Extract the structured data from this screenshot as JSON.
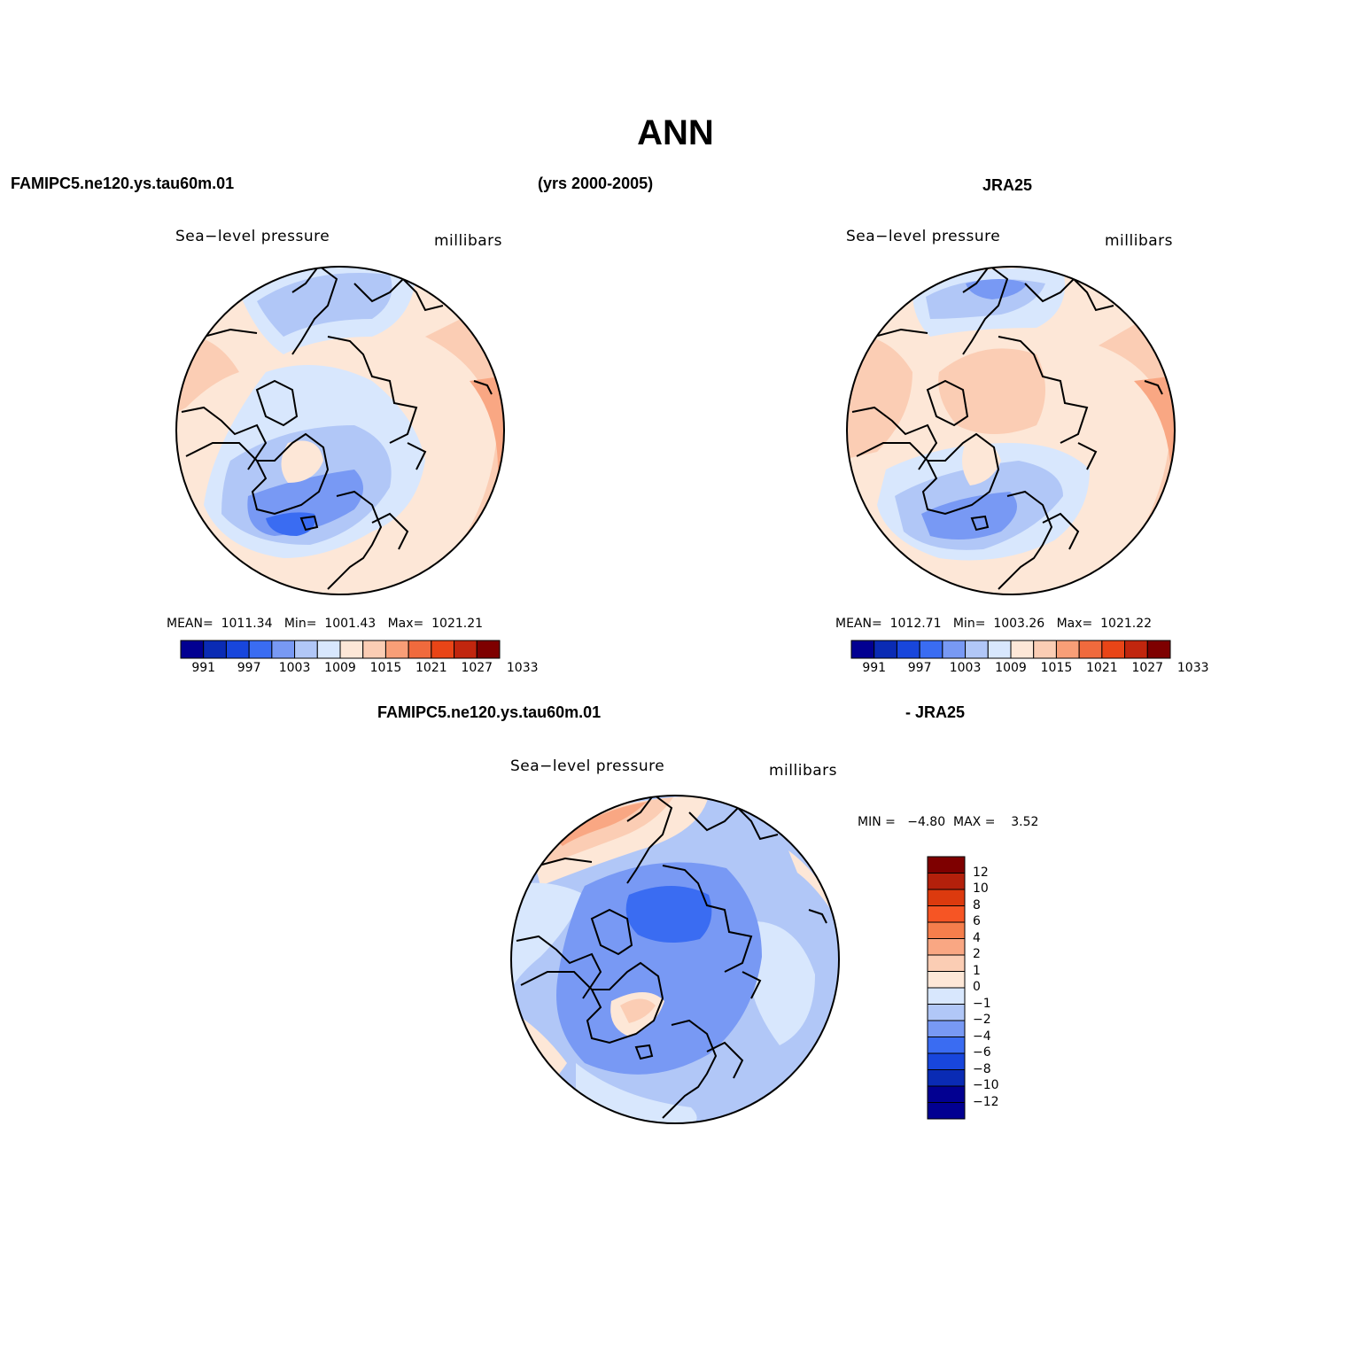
{
  "title": "ANN",
  "header_left": "FAMIPC5.ne120.ys.tau60m.01",
  "header_center": "(yrs 2000-2005)",
  "header_right": "JRA25",
  "diff_header_left": "FAMIPC5.ne120.ys.tau60m.01",
  "diff_header_right": "- JRA25",
  "maps": [
    {
      "variable": "Sea−level pressure",
      "units": "millibars",
      "stats": "MEAN=  1011.34   Min=  1001.43   Max=  1021.21"
    },
    {
      "variable": "Sea−level pressure",
      "units": "millibars",
      "stats": "MEAN=  1012.71   Min=  1003.26   Max=  1021.22"
    },
    {
      "variable": "Sea−level pressure",
      "units": "millibars",
      "stats": "MIN =   −4.80  MAX =    3.52"
    }
  ],
  "colorbar_main": {
    "colors": [
      "#020091",
      "#0a2bb4",
      "#1846dc",
      "#3a6cf2",
      "#7899f4",
      "#b1c7f7",
      "#d8e7fd",
      "#fde7d7",
      "#fbcdb4",
      "#f89e77",
      "#f06a3d",
      "#e94517",
      "#c1260e",
      "#7e0000"
    ],
    "labels": [
      "991",
      "997",
      "1003",
      "1009",
      "1015",
      "1021",
      "1027",
      "1033"
    ]
  },
  "colorbar_diff": {
    "colors": [
      "#7e0000",
      "#b3200b",
      "#dc3a0e",
      "#f65524",
      "#f57e4c",
      "#f9a783",
      "#fbcdb4",
      "#fde7d7",
      "#d8e7fd",
      "#b1c7f7",
      "#7899f4",
      "#3a6cf2",
      "#1846dc",
      "#0a2bb4",
      "#020091",
      "#020091"
    ],
    "labels": [
      "12",
      "10",
      "8",
      "6",
      "4",
      "2",
      "1",
      "0",
      "−1",
      "−2",
      "−4",
      "−6",
      "−8",
      "−10",
      "−12"
    ]
  },
  "palette": {
    "light_blue": "#d8e7fd",
    "mid_blue": "#b1c7f7",
    "blue": "#7899f4",
    "deep_blue": "#3a6cf2",
    "cream": "#fde7d7",
    "peach": "#fbcdb4",
    "orange": "#f9a783"
  }
}
